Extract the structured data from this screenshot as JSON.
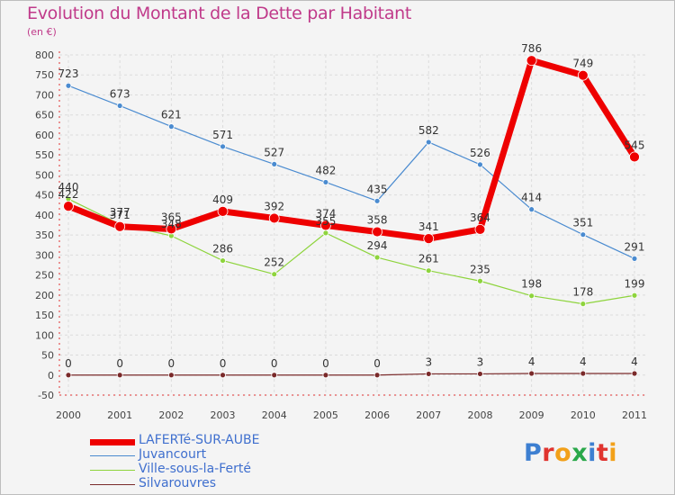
{
  "title": "Evolution du Montant de la Dette par Habitant",
  "subtitle": "(en €)",
  "logo_text": "Proxiti",
  "chart_data": {
    "type": "line",
    "title": "Evolution du Montant de la Dette par Habitant",
    "subtitle": "(en €)",
    "xlabel": "",
    "ylabel": "",
    "x": [
      "2000",
      "2001",
      "2002",
      "2003",
      "2004",
      "2005",
      "2006",
      "2007",
      "2008",
      "2009",
      "2010",
      "2011"
    ],
    "ylim": [
      -50,
      800
    ],
    "yticks": [
      -50,
      0,
      50,
      100,
      150,
      200,
      250,
      300,
      350,
      400,
      450,
      500,
      550,
      600,
      650,
      700,
      750,
      800
    ],
    "grid": true,
    "legend_position": "bottom-left",
    "series": [
      {
        "name": "Juvancourt",
        "color": "#4a8bd0",
        "values": [
          723,
          673,
          621,
          571,
          527,
          482,
          435,
          582,
          526,
          414,
          351,
          291
        ]
      },
      {
        "name": "Ville-sous-la-Ferté",
        "color": "#8ed43d",
        "values": [
          440,
          377,
          348,
          286,
          252,
          355,
          294,
          261,
          235,
          198,
          178,
          199
        ]
      },
      {
        "name": "Silvarouvres",
        "color": "#7a2a2a",
        "values": [
          0,
          0,
          0,
          0,
          0,
          0,
          0,
          3,
          3,
          4,
          4,
          4
        ]
      },
      {
        "name": "LAFERTé-SUR-AUBE",
        "color": "#ee0000",
        "values": [
          422,
          371,
          365,
          409,
          392,
          374,
          358,
          341,
          364,
          786,
          749,
          545
        ]
      }
    ]
  }
}
